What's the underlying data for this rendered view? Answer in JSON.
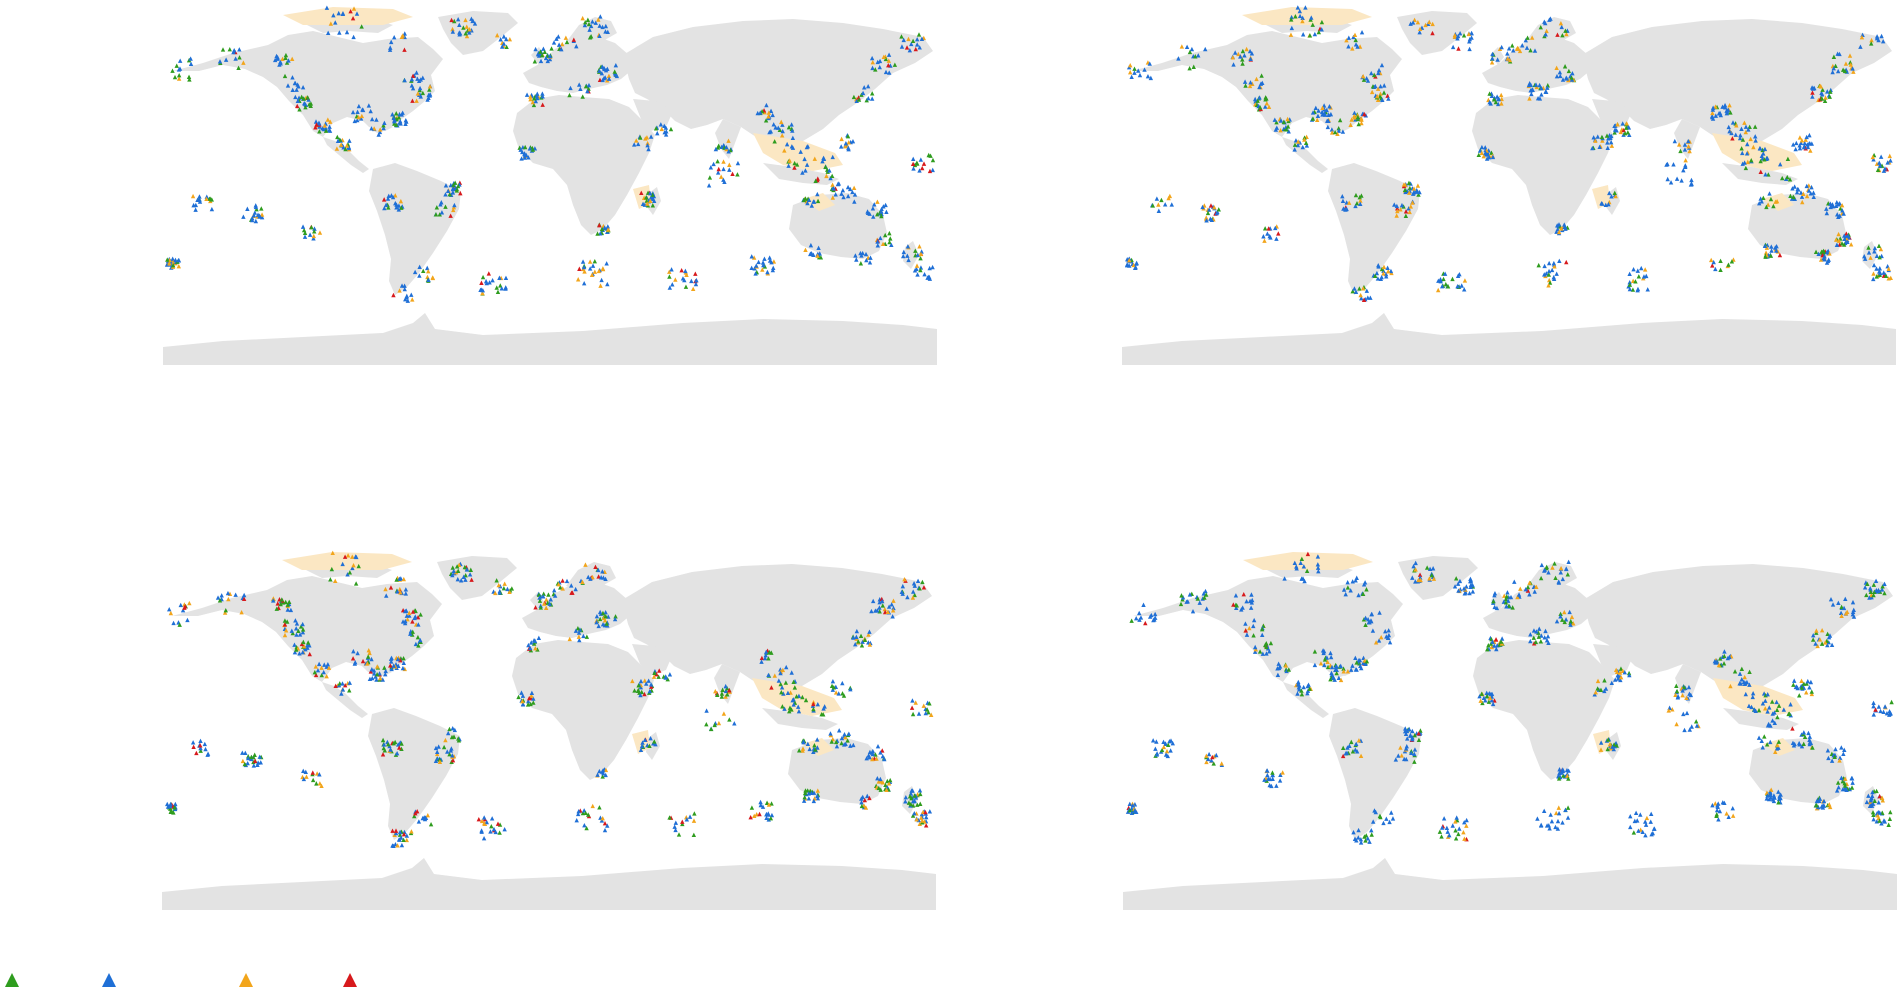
{
  "colors": {
    "land": "#e3e3e3",
    "ice": "#fbe7c3",
    "background": "#ffffff"
  },
  "legend": [
    {
      "id": "class-1",
      "icon": "triangle-icon",
      "color": "#2e9c1e"
    },
    {
      "id": "class-2",
      "icon": "triangle-icon",
      "color": "#1f6fd6"
    },
    {
      "id": "class-3",
      "icon": "triangle-icon",
      "color": "#f2a51b"
    },
    {
      "id": "class-4",
      "icon": "triangle-icon",
      "color": "#d7191c"
    }
  ],
  "panels": [
    {
      "id": "panel-tl",
      "seed": 11,
      "mix": [
        0.22,
        0.58,
        0.15,
        0.05
      ]
    },
    {
      "id": "panel-tr",
      "seed": 23,
      "mix": [
        0.2,
        0.55,
        0.21,
        0.04
      ]
    },
    {
      "id": "panel-bl",
      "seed": 37,
      "mix": [
        0.24,
        0.5,
        0.16,
        0.1
      ]
    },
    {
      "id": "panel-br",
      "seed": 51,
      "mix": [
        0.22,
        0.62,
        0.13,
        0.03
      ]
    }
  ]
}
